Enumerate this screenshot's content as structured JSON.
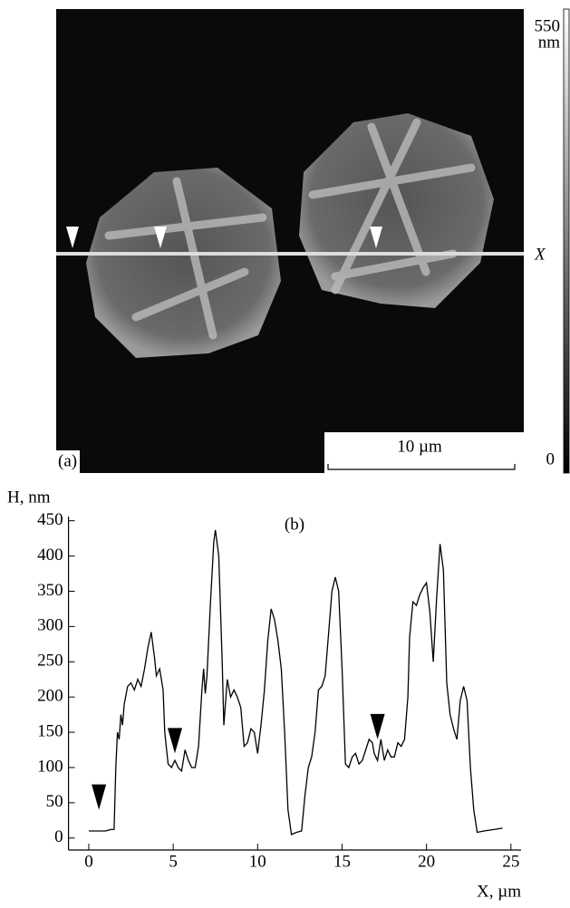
{
  "image_panel": {
    "panel_label": "(a)",
    "scale_bar": "10 µm",
    "colorbar_top": "550",
    "colorbar_unit": "nm",
    "colorbar_bottom": "0",
    "line_label": "X"
  },
  "chart_data": {
    "type": "line",
    "title": "(b)",
    "y_label": "H, nm",
    "x_label": "X, µm",
    "color": "#000000",
    "xlim": [
      -1.2,
      25.6
    ],
    "xticks": [
      0,
      5,
      10,
      15,
      20,
      25
    ],
    "ylim": [
      -17,
      456
    ],
    "yticks": [
      0,
      50,
      100,
      150,
      200,
      250,
      300,
      350,
      400,
      450
    ],
    "x": [
      0,
      0.5,
      1.0,
      1.3,
      1.5,
      1.6,
      1.7,
      1.8,
      1.9,
      2.0,
      2.1,
      2.3,
      2.5,
      2.7,
      2.9,
      3.1,
      3.3,
      3.5,
      3.7,
      3.9,
      4.0,
      4.2,
      4.4,
      4.5,
      4.7,
      4.9,
      5.1,
      5.3,
      5.5,
      5.7,
      5.9,
      6.1,
      6.3,
      6.5,
      6.7,
      6.8,
      6.9,
      7.0,
      7.2,
      7.4,
      7.5,
      7.7,
      7.9,
      8.0,
      8.2,
      8.4,
      8.6,
      8.8,
      9.0,
      9.2,
      9.4,
      9.6,
      9.8,
      10.0,
      10.2,
      10.4,
      10.6,
      10.8,
      11.0,
      11.2,
      11.4,
      11.6,
      11.8,
      12.0,
      12.3,
      12.6,
      12.8,
      13.0,
      13.2,
      13.4,
      13.6,
      13.8,
      14.0,
      14.2,
      14.4,
      14.6,
      14.8,
      15.0,
      15.2,
      15.4,
      15.6,
      15.8,
      16.0,
      16.2,
      16.4,
      16.6,
      16.8,
      16.9,
      17.1,
      17.3,
      17.5,
      17.7,
      17.9,
      18.1,
      18.3,
      18.5,
      18.7,
      18.9,
      19.0,
      19.2,
      19.4,
      19.6,
      19.8,
      20.0,
      20.2,
      20.4,
      20.6,
      20.8,
      21.0,
      21.2,
      21.4,
      21.6,
      21.8,
      22.0,
      22.2,
      22.4,
      22.6,
      22.8,
      23.0,
      23.4,
      24.0,
      24.5
    ],
    "values": [
      10,
      10,
      10,
      12,
      12,
      100,
      150,
      140,
      175,
      160,
      190,
      215,
      220,
      210,
      225,
      215,
      240,
      270,
      292,
      255,
      230,
      240,
      210,
      150,
      105,
      100,
      110,
      100,
      95,
      125,
      110,
      100,
      100,
      130,
      210,
      240,
      205,
      230,
      330,
      420,
      437,
      400,
      250,
      160,
      225,
      200,
      210,
      200,
      185,
      130,
      135,
      155,
      150,
      120,
      160,
      210,
      280,
      325,
      310,
      280,
      240,
      150,
      40,
      5,
      8,
      10,
      60,
      100,
      115,
      150,
      210,
      215,
      230,
      290,
      350,
      370,
      350,
      240,
      105,
      100,
      115,
      120,
      105,
      110,
      125,
      140,
      135,
      120,
      110,
      140,
      110,
      125,
      115,
      115,
      135,
      130,
      140,
      200,
      285,
      335,
      330,
      345,
      355,
      362,
      320,
      250,
      340,
      417,
      380,
      220,
      175,
      155,
      140,
      195,
      215,
      195,
      100,
      40,
      8,
      10,
      12,
      14
    ],
    "markers": {
      "x": [
        0.6,
        5.1,
        17.1
      ],
      "y": [
        40,
        120,
        140
      ]
    }
  }
}
